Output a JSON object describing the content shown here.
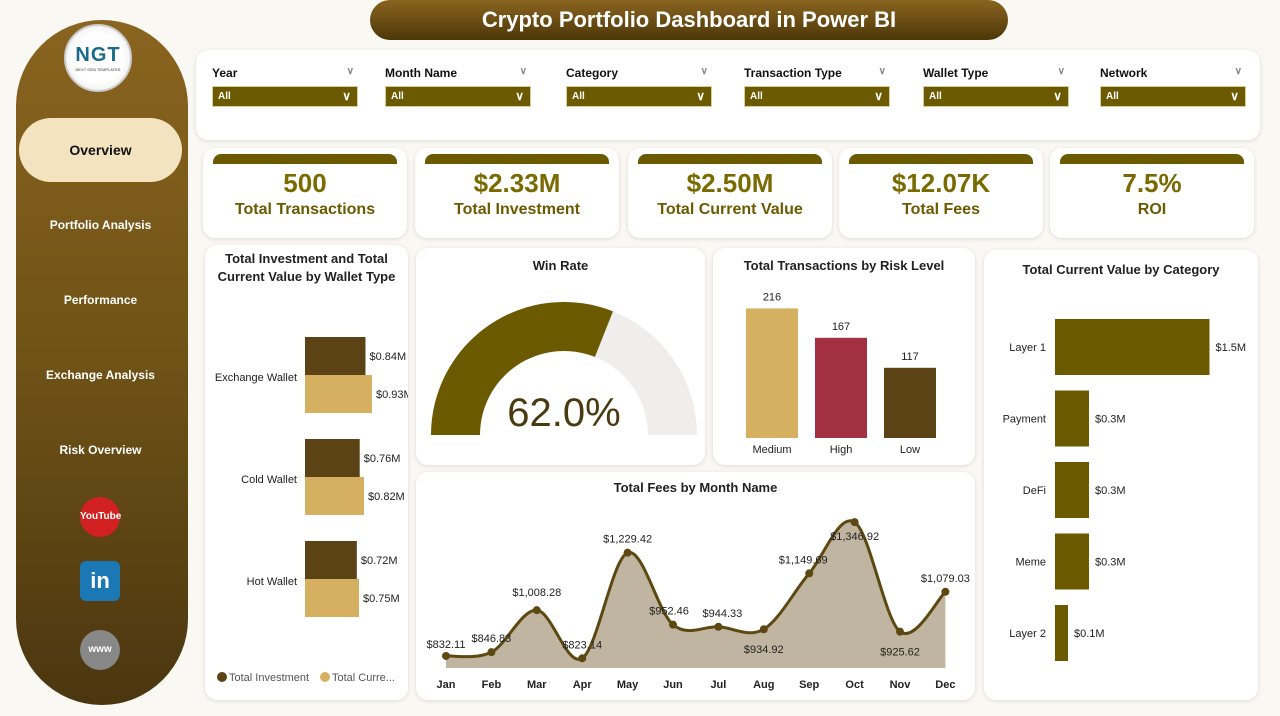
{
  "title": "Crypto Portfolio Dashboard in Power BI",
  "sidebar": {
    "logo_text": "NGT",
    "logo_sub": "NEXT GEN TEMPLATES",
    "items": [
      {
        "label": "Overview",
        "active": true
      },
      {
        "label": "Portfolio Analysis"
      },
      {
        "label": "Performance"
      },
      {
        "label": "Exchange Analysis"
      },
      {
        "label": "Risk Overview"
      }
    ],
    "social": [
      {
        "icon": "youtube-icon",
        "label": "YouTube"
      },
      {
        "icon": "linkedin-icon",
        "label": "in"
      },
      {
        "icon": "globe-icon",
        "label": "www"
      }
    ]
  },
  "filters": [
    {
      "label": "Year",
      "value": "All"
    },
    {
      "label": "Month Name",
      "value": "All"
    },
    {
      "label": "Category",
      "value": "All"
    },
    {
      "label": "Transaction Type",
      "value": "All"
    },
    {
      "label": "Wallet Type",
      "value": "All"
    },
    {
      "label": "Network",
      "value": "All"
    }
  ],
  "kpis": [
    {
      "value": "500",
      "label": "Total Transactions"
    },
    {
      "value": "$2.33M",
      "label": "Total Investment"
    },
    {
      "value": "$2.50M",
      "label": "Total Current Value"
    },
    {
      "value": "$12.07K",
      "label": "Total Fees"
    },
    {
      "value": "7.5%",
      "label": "ROI"
    }
  ],
  "colors": {
    "accent": "#6b5a00",
    "investment": "#5c4315",
    "current_value": "#d4b060",
    "medium": "#d4b060",
    "high": "#a33040",
    "low": "#5c4315"
  },
  "chart_data": [
    {
      "type": "bar",
      "title": "Total Investment and Total Current Value by Wallet Type",
      "orientation": "horizontal",
      "categories": [
        "Exchange Wallet",
        "Cold Wallet",
        "Hot Wallet"
      ],
      "series": [
        {
          "name": "Total Investment",
          "values": [
            0.84,
            0.76,
            0.72
          ],
          "labels": [
            "$0.84M",
            "$0.76M",
            "$0.72M"
          ]
        },
        {
          "name": "Total Curre...",
          "values": [
            0.93,
            0.82,
            0.75
          ],
          "labels": [
            "$0.93M",
            "$0.82M",
            "$0.75M"
          ]
        }
      ],
      "legend": "bottom"
    },
    {
      "type": "gauge",
      "title": "Win Rate",
      "value": 62.0,
      "label": "62.0%",
      "range": [
        0,
        100
      ]
    },
    {
      "type": "bar",
      "title": "Total Transactions by Risk Level",
      "categories": [
        "Medium",
        "High",
        "Low"
      ],
      "values": [
        216,
        167,
        117
      ]
    },
    {
      "type": "bar",
      "title": "Total Current Value by Category",
      "orientation": "horizontal",
      "categories": [
        "Layer 1",
        "Payment",
        "DeFi",
        "Meme",
        "Layer 2"
      ],
      "values": [
        1.5,
        0.3,
        0.3,
        0.3,
        0.1
      ],
      "labels": [
        "$1.5M",
        "$0.3M",
        "$0.3M",
        "$0.3M",
        "$0.1M"
      ]
    },
    {
      "type": "area",
      "title": "Total Fees by Month Name",
      "categories": [
        "Jan",
        "Feb",
        "Mar",
        "Apr",
        "May",
        "Jun",
        "Jul",
        "Aug",
        "Sep",
        "Oct",
        "Nov",
        "Dec"
      ],
      "values": [
        832.11,
        846.83,
        1008.28,
        823.14,
        1229.42,
        952.46,
        944.33,
        934.92,
        1149.69,
        1346.92,
        925.62,
        1079.03
      ],
      "labels": [
        "$832.11",
        "$846.83",
        "$1,008.28",
        "$823.14",
        "$1,229.42",
        "$952.46",
        "$944.33",
        "$934.92",
        "$1,149.69",
        "$1,346.92",
        "$925.62",
        "$1,079.03"
      ]
    }
  ]
}
